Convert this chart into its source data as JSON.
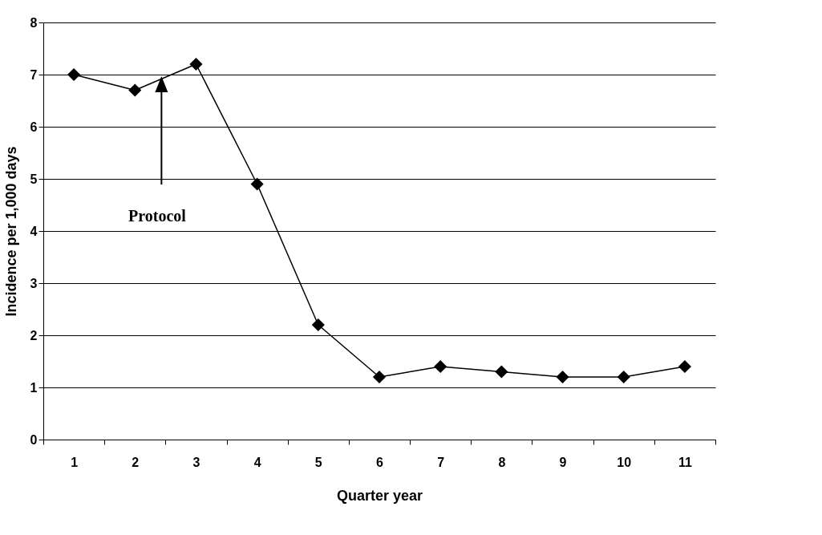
{
  "chart_data": {
    "type": "line",
    "xlabel": "Quarter year",
    "ylabel": "Incidence per 1,000 days",
    "categories": [
      "1",
      "2",
      "3",
      "4",
      "5",
      "6",
      "7",
      "8",
      "9",
      "10",
      "11"
    ],
    "series": [
      {
        "color": "#000000",
        "values": [
          7,
          6.7,
          7.2,
          4.9,
          2.2,
          1.2,
          1.4,
          1.3,
          1.2,
          1.2,
          1.4
        ]
      }
    ],
    "ylim": [
      0,
      8
    ],
    "yticks": [
      0,
      1,
      2,
      3,
      4,
      5,
      6,
      7,
      8
    ],
    "grid": "y",
    "legend": false,
    "marker": "diamond",
    "line_style": "solid",
    "annotations": [
      "Protocol"
    ]
  }
}
